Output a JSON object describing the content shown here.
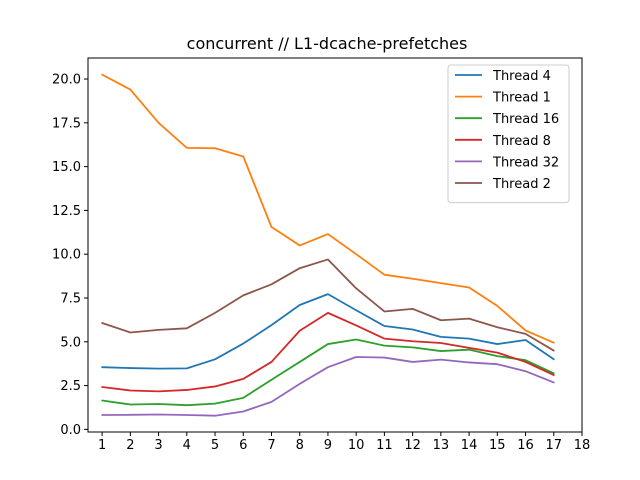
{
  "chart_data": {
    "type": "line",
    "title": "concurrent // L1-dcache-prefetches",
    "xlabel": "",
    "ylabel": "",
    "xlim": [
      0.5,
      18
    ],
    "ylim": [
      -0.15,
      21.2
    ],
    "x_ticks": [
      1,
      2,
      3,
      4,
      5,
      6,
      7,
      8,
      9,
      10,
      11,
      12,
      13,
      14,
      15,
      16,
      17,
      18
    ],
    "x_tick_labels": [
      "1",
      "2",
      "3",
      "4",
      "5",
      "6",
      "7",
      "8",
      "9",
      "10",
      "11",
      "12",
      "13",
      "14",
      "15",
      "16",
      "17",
      "18"
    ],
    "y_ticks": [
      0,
      2.5,
      5,
      7.5,
      10,
      12.5,
      15,
      17.5,
      20
    ],
    "y_tick_labels": [
      "0.0",
      "2.5",
      "5.0",
      "7.5",
      "10.0",
      "12.5",
      "15.0",
      "17.5",
      "20.0"
    ],
    "grid": false,
    "legend_position": "top-right",
    "x": [
      1,
      2,
      3,
      4,
      5,
      6,
      7,
      8,
      9,
      10,
      11,
      12,
      13,
      14,
      15,
      16,
      17
    ],
    "series": [
      {
        "name": "Thread 4",
        "color": "#1f77b4",
        "values": [
          3.55,
          3.5,
          3.47,
          3.48,
          4.0,
          4.9,
          5.95,
          7.1,
          7.72,
          6.8,
          5.9,
          5.7,
          5.28,
          5.18,
          4.87,
          5.1,
          4.0
        ]
      },
      {
        "name": "Thread 1",
        "color": "#ff7f0e",
        "values": [
          20.25,
          19.4,
          17.5,
          16.07,
          16.05,
          15.58,
          11.55,
          10.5,
          11.15,
          10.0,
          8.83,
          8.6,
          8.35,
          8.1,
          7.05,
          5.65,
          4.95
        ]
      },
      {
        "name": "Thread 16",
        "color": "#2ca02c",
        "values": [
          1.65,
          1.42,
          1.45,
          1.38,
          1.47,
          1.8,
          2.83,
          3.85,
          4.87,
          5.13,
          4.78,
          4.68,
          4.47,
          4.55,
          4.18,
          3.95,
          3.2
        ]
      },
      {
        "name": "Thread 8",
        "color": "#d62728",
        "values": [
          2.42,
          2.22,
          2.17,
          2.25,
          2.45,
          2.88,
          3.85,
          5.63,
          6.65,
          5.93,
          5.18,
          5.03,
          4.93,
          4.65,
          4.38,
          3.85,
          3.1
        ]
      },
      {
        "name": "Thread 32",
        "color": "#9467bd",
        "values": [
          0.82,
          0.83,
          0.85,
          0.82,
          0.78,
          1.02,
          1.57,
          2.6,
          3.55,
          4.13,
          4.1,
          3.85,
          3.98,
          3.82,
          3.72,
          3.32,
          2.68
        ]
      },
      {
        "name": "Thread 2",
        "color": "#8c564b",
        "values": [
          6.07,
          5.53,
          5.68,
          5.77,
          6.65,
          7.65,
          8.28,
          9.2,
          9.7,
          8.05,
          6.73,
          6.88,
          6.23,
          6.32,
          5.83,
          5.45,
          4.5
        ]
      }
    ]
  }
}
